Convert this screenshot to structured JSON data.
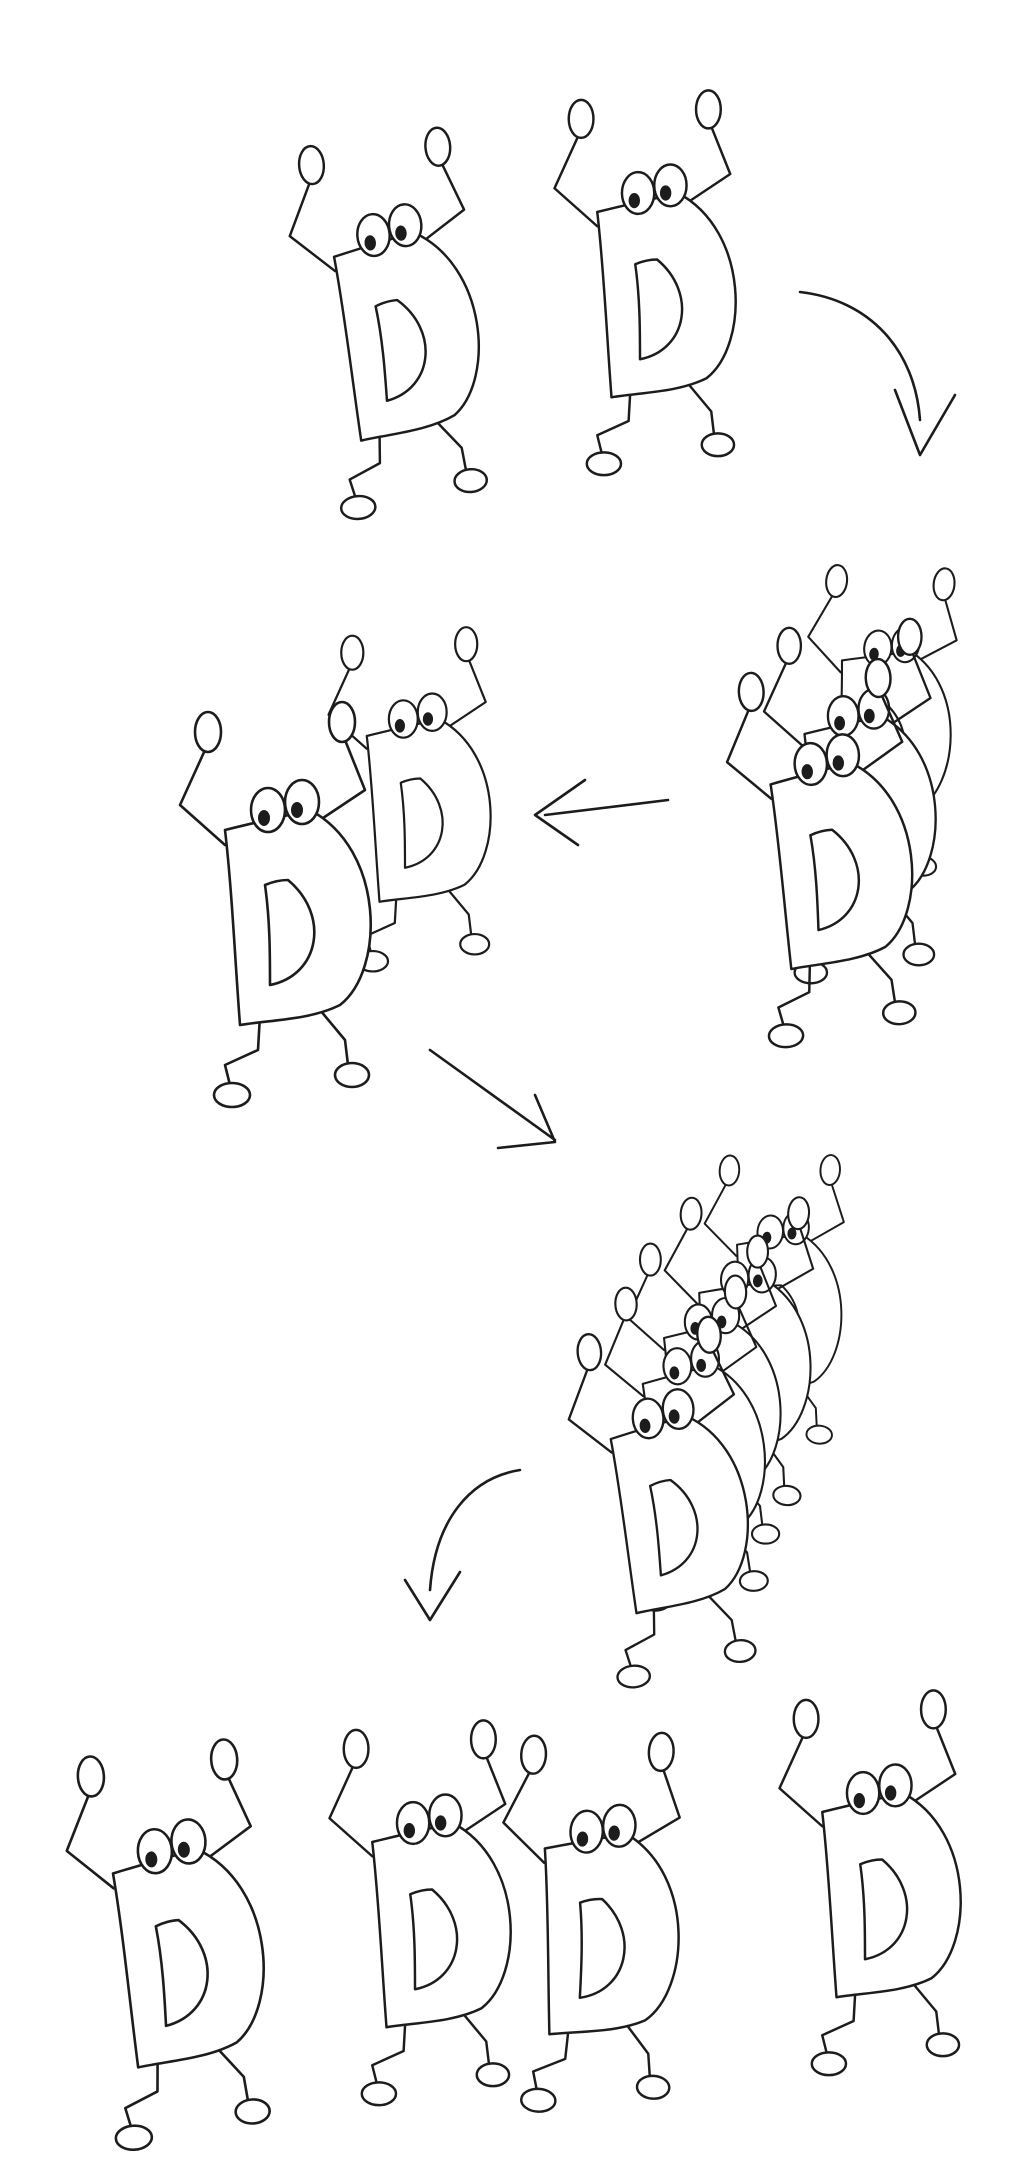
{
  "diagram": {
    "kind": "hand-drawn sequence",
    "ink_color": "#1c1c1c",
    "background_color": "#ffffff",
    "character_letter": "D",
    "stages": [
      {
        "name": "stage-1",
        "character_count": 2
      },
      {
        "name": "stage-2",
        "character_count": 3
      },
      {
        "name": "stage-3",
        "character_count": 2
      },
      {
        "name": "stage-4",
        "character_count": 5
      },
      {
        "name": "stage-5",
        "character_count": 4
      }
    ],
    "arrows": [
      {
        "name": "arrow-stage-1-to-2",
        "style": "curved"
      },
      {
        "name": "arrow-stage-2-to-3",
        "style": "straight"
      },
      {
        "name": "arrow-stage-3-to-4",
        "style": "straight"
      },
      {
        "name": "arrow-stage-4-to-5",
        "style": "curved"
      }
    ]
  }
}
